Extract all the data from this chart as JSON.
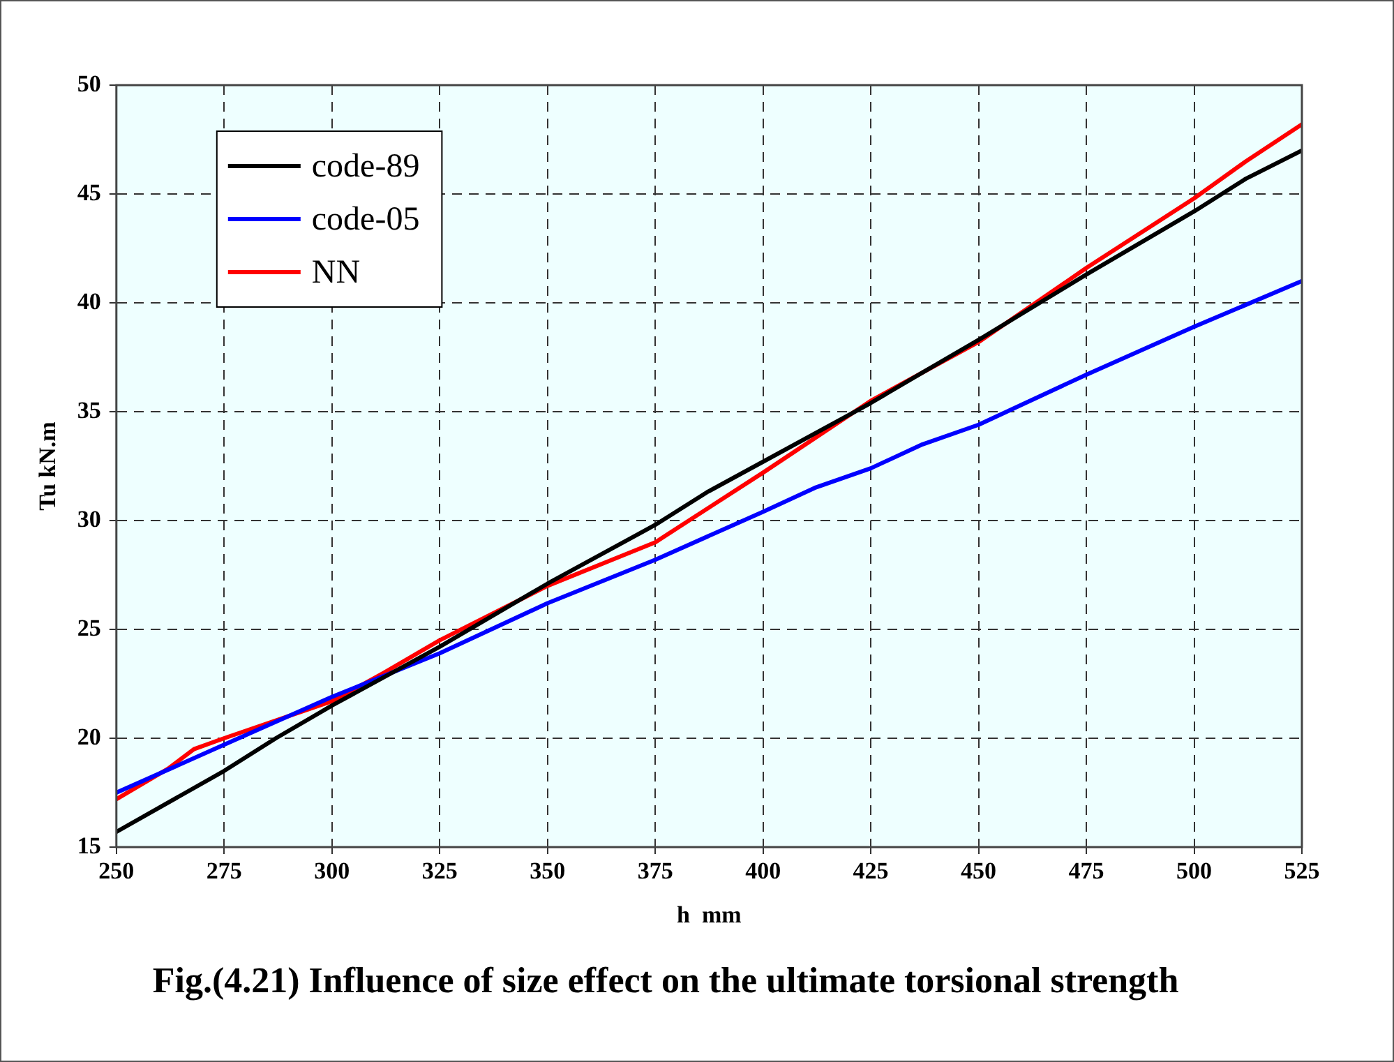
{
  "chart_data": {
    "type": "line",
    "title": "Fig.(4.21) Influence of size effect on the ultimate torsional strength",
    "xlabel": "h  mm",
    "ylabel": "Tu kN.m",
    "xlim": [
      250,
      525
    ],
    "xticks": [
      250,
      275,
      300,
      325,
      350,
      375,
      400,
      425,
      450,
      475,
      500,
      525
    ],
    "ylim": [
      15,
      50
    ],
    "yticks": [
      15,
      20,
      25,
      30,
      35,
      40,
      45,
      50
    ],
    "grid": true,
    "legend": "top left",
    "marker": "none",
    "line_style": "solid",
    "series": [
      {
        "name": "code-89",
        "color": "#000000",
        "x": [
          250,
          275,
          287,
          300,
          325,
          350,
          375,
          387,
          400,
          425,
          437,
          450,
          475,
          500,
          512,
          525
        ],
        "values": [
          15.7,
          18.5,
          20.0,
          21.5,
          24.2,
          27.1,
          29.8,
          31.3,
          32.7,
          35.4,
          36.8,
          38.3,
          41.3,
          44.2,
          45.7,
          47.0
        ]
      },
      {
        "name": "code-05",
        "color": "#0000ff",
        "x": [
          250,
          275,
          300,
          325,
          350,
          375,
          400,
          412,
          425,
          437,
          450,
          475,
          500,
          525
        ],
        "values": [
          17.5,
          19.7,
          21.9,
          23.9,
          26.2,
          28.2,
          30.4,
          31.5,
          32.4,
          33.5,
          34.4,
          36.7,
          38.9,
          41.0
        ]
      },
      {
        "name": "NN",
        "color": "#ff0000",
        "x": [
          250,
          262,
          268,
          275,
          300,
          312,
          325,
          350,
          375,
          400,
          425,
          437,
          450,
          475,
          500,
          512,
          525
        ],
        "values": [
          17.2,
          18.6,
          19.5,
          20.0,
          21.7,
          23.0,
          24.5,
          27.0,
          29.0,
          32.2,
          35.5,
          36.8,
          38.2,
          41.6,
          44.8,
          46.5,
          48.2
        ]
      }
    ]
  }
}
